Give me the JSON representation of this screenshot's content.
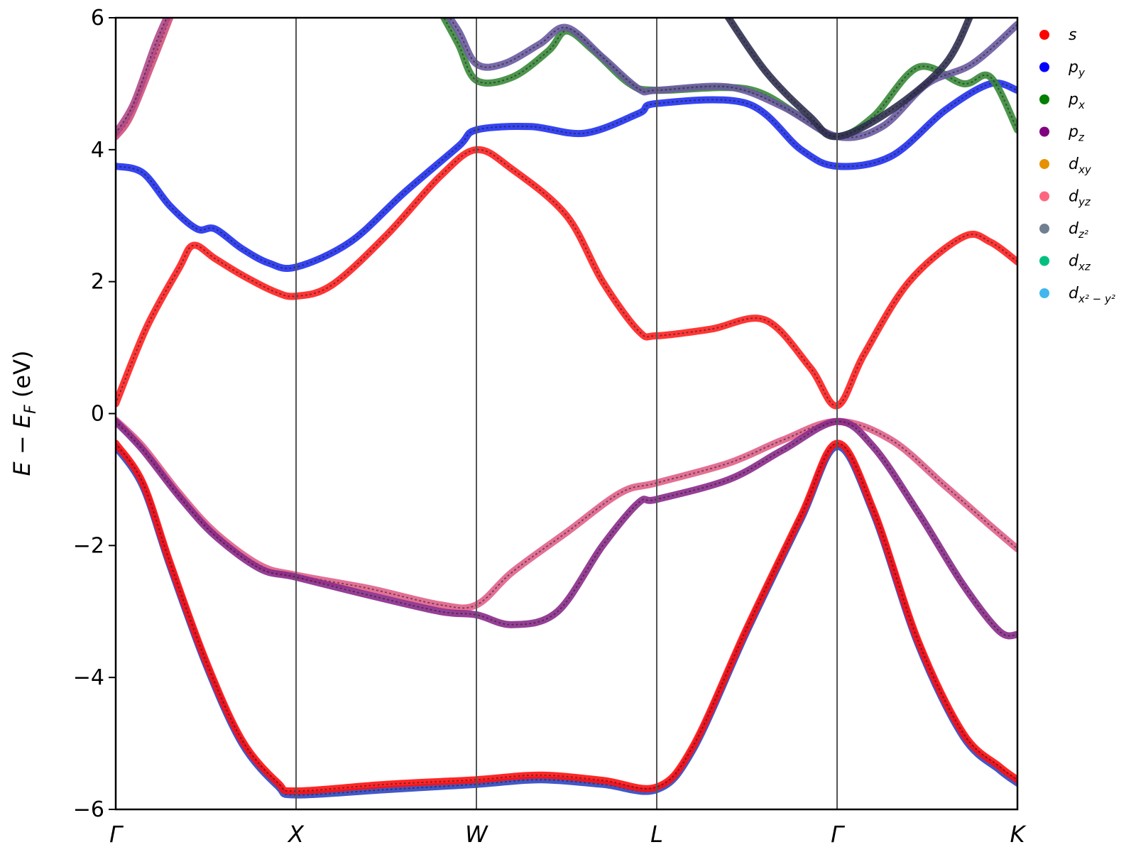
{
  "chart_data": {
    "type": "line",
    "ylabel": "E − E_F (eV)",
    "ylabel_parts": [
      "E",
      " − ",
      "E",
      "F",
      " (eV)"
    ],
    "ylim": [
      -6,
      6
    ],
    "y_ticks": [
      "−6",
      "−4",
      "−2",
      "0",
      "2",
      "4",
      "6"
    ],
    "y_tick_values": [
      -6,
      -4,
      -2,
      0,
      2,
      4,
      6
    ],
    "high_symmetry_points": [
      "Γ",
      "X",
      "W",
      "L",
      "Γ",
      "K"
    ],
    "high_symmetry_positions": [
      0,
      1,
      2,
      3,
      4,
      5
    ],
    "grid": false,
    "legend_position": "outside-right",
    "legend": [
      {
        "main": "s",
        "sub": "",
        "color": "#ff0000"
      },
      {
        "main": "p",
        "sub": "y",
        "color": "#0000ff"
      },
      {
        "main": "p",
        "sub": "x",
        "color": "#007f00"
      },
      {
        "main": "p",
        "sub": "z",
        "color": "#800080"
      },
      {
        "main": "d",
        "sub": "xy",
        "color": "#e69100"
      },
      {
        "main": "d",
        "sub": "yz",
        "color": "#ff6680"
      },
      {
        "main": "d",
        "sub": "z²",
        "color": "#708090"
      },
      {
        "main": "d",
        "sub": "xz",
        "color": "#00c080"
      },
      {
        "main": "d",
        "sub": "x² − y²",
        "color": "#40b8ee"
      }
    ],
    "series": [
      {
        "color": "#ff2020",
        "points": [
          [
            0,
            0.15
          ],
          [
            0.17,
            1.3
          ],
          [
            0.35,
            2.2
          ],
          [
            0.43,
            2.55
          ],
          [
            0.55,
            2.35
          ],
          [
            0.7,
            2.1
          ],
          [
            0.88,
            1.85
          ],
          [
            1.0,
            1.78
          ],
          [
            1.2,
            1.95
          ],
          [
            1.5,
            2.7
          ],
          [
            1.8,
            3.6
          ],
          [
            2.0,
            4.0
          ],
          [
            2.2,
            3.7
          ],
          [
            2.5,
            3.0
          ],
          [
            2.7,
            2.0
          ],
          [
            2.9,
            1.25
          ],
          [
            3.0,
            1.18
          ],
          [
            3.3,
            1.28
          ],
          [
            3.6,
            1.42
          ],
          [
            3.85,
            0.7
          ],
          [
            4.0,
            0.12
          ],
          [
            4.15,
            0.9
          ],
          [
            4.4,
            2.0
          ],
          [
            4.7,
            2.68
          ],
          [
            4.85,
            2.6
          ],
          [
            5.0,
            2.3
          ]
        ]
      },
      {
        "color": "#2030ee",
        "points": [
          [
            0,
            3.75
          ],
          [
            0.15,
            3.65
          ],
          [
            0.3,
            3.15
          ],
          [
            0.45,
            2.8
          ],
          [
            0.55,
            2.8
          ],
          [
            0.7,
            2.5
          ],
          [
            0.85,
            2.28
          ],
          [
            1.0,
            2.22
          ],
          [
            1.3,
            2.6
          ],
          [
            1.6,
            3.35
          ],
          [
            1.9,
            4.05
          ],
          [
            2.0,
            4.3
          ],
          [
            2.3,
            4.35
          ],
          [
            2.6,
            4.25
          ],
          [
            2.9,
            4.55
          ],
          [
            3.0,
            4.7
          ],
          [
            3.5,
            4.7
          ],
          [
            3.8,
            4.0
          ],
          [
            4.0,
            3.75
          ],
          [
            4.3,
            3.9
          ],
          [
            4.6,
            4.6
          ],
          [
            4.85,
            5.0
          ],
          [
            5.0,
            4.9
          ]
        ]
      },
      {
        "color": "#d0507a",
        "points": [
          [
            0,
            4.2
          ],
          [
            0.08,
            4.5
          ],
          [
            0.2,
            5.3
          ],
          [
            0.3,
            6.0
          ]
        ]
      },
      {
        "color": "#b04a8a",
        "points": [
          [
            0,
            4.25
          ],
          [
            0.1,
            4.7
          ],
          [
            0.22,
            5.6
          ],
          [
            0.3,
            6.1
          ]
        ]
      },
      {
        "color": "#3a8a3a",
        "points": [
          [
            1.8,
            6.1
          ],
          [
            1.9,
            5.6
          ],
          [
            2.0,
            5.05
          ],
          [
            2.2,
            5.1
          ],
          [
            2.4,
            5.5
          ],
          [
            2.5,
            5.8
          ],
          [
            2.65,
            5.5
          ],
          [
            2.85,
            5.0
          ],
          [
            3.0,
            4.9
          ],
          [
            3.5,
            4.92
          ],
          [
            3.8,
            4.5
          ],
          [
            4.0,
            4.2
          ],
          [
            4.2,
            4.5
          ],
          [
            4.45,
            5.25
          ],
          [
            4.7,
            5.0
          ],
          [
            4.85,
            5.1
          ],
          [
            5.0,
            4.3
          ]
        ]
      },
      {
        "color": "#6a5aa0",
        "points": [
          [
            1.8,
            6.2
          ],
          [
            1.9,
            5.8
          ],
          [
            2.0,
            5.3
          ],
          [
            2.15,
            5.3
          ],
          [
            2.35,
            5.6
          ],
          [
            2.5,
            5.85
          ],
          [
            2.7,
            5.4
          ],
          [
            2.9,
            4.92
          ],
          [
            3.0,
            4.9
          ],
          [
            3.4,
            4.95
          ],
          [
            3.7,
            4.65
          ],
          [
            4.0,
            4.2
          ],
          [
            4.25,
            4.35
          ],
          [
            4.5,
            5.0
          ],
          [
            4.75,
            5.3
          ],
          [
            5.0,
            5.9
          ]
        ]
      },
      {
        "color": "#303050",
        "points": [
          [
            3.35,
            6.2
          ],
          [
            3.6,
            5.2
          ],
          [
            3.85,
            4.5
          ],
          [
            4.0,
            4.2
          ],
          [
            4.3,
            4.6
          ],
          [
            4.6,
            5.3
          ],
          [
            4.75,
            6.1
          ]
        ]
      },
      {
        "color": "#e0608a",
        "points": [
          [
            0,
            -0.1
          ],
          [
            0.15,
            -0.5
          ],
          [
            0.35,
            -1.2
          ],
          [
            0.55,
            -1.8
          ],
          [
            0.8,
            -2.3
          ],
          [
            1.0,
            -2.45
          ],
          [
            1.4,
            -2.65
          ],
          [
            1.8,
            -2.9
          ],
          [
            2.0,
            -2.9
          ],
          [
            2.2,
            -2.4
          ],
          [
            2.5,
            -1.8
          ],
          [
            2.8,
            -1.2
          ],
          [
            3.0,
            -1.05
          ],
          [
            3.4,
            -0.75
          ],
          [
            3.7,
            -0.4
          ],
          [
            4.0,
            -0.12
          ],
          [
            4.3,
            -0.4
          ],
          [
            4.6,
            -1.1
          ],
          [
            4.85,
            -1.7
          ],
          [
            5.0,
            -2.05
          ]
        ]
      },
      {
        "color": "#8a2a8a",
        "points": [
          [
            0,
            -0.12
          ],
          [
            0.15,
            -0.55
          ],
          [
            0.35,
            -1.25
          ],
          [
            0.55,
            -1.85
          ],
          [
            0.8,
            -2.35
          ],
          [
            1.0,
            -2.48
          ],
          [
            1.4,
            -2.75
          ],
          [
            1.8,
            -3.0
          ],
          [
            2.0,
            -3.05
          ],
          [
            2.2,
            -3.2
          ],
          [
            2.45,
            -3.0
          ],
          [
            2.7,
            -2.0
          ],
          [
            2.9,
            -1.35
          ],
          [
            3.0,
            -1.3
          ],
          [
            3.4,
            -1.0
          ],
          [
            3.7,
            -0.55
          ],
          [
            4.0,
            -0.12
          ],
          [
            4.2,
            -0.5
          ],
          [
            4.45,
            -1.5
          ],
          [
            4.7,
            -2.6
          ],
          [
            4.9,
            -3.3
          ],
          [
            5.0,
            -3.35
          ]
        ]
      },
      {
        "color": "#2f45c0",
        "points": [
          [
            0,
            -0.5
          ],
          [
            0.15,
            -1.1
          ],
          [
            0.3,
            -2.3
          ],
          [
            0.5,
            -3.8
          ],
          [
            0.7,
            -5.0
          ],
          [
            0.9,
            -5.65
          ],
          [
            1.0,
            -5.78
          ],
          [
            1.5,
            -5.7
          ],
          [
            2.0,
            -5.62
          ],
          [
            2.35,
            -5.55
          ],
          [
            2.7,
            -5.62
          ],
          [
            3.0,
            -5.7
          ],
          [
            3.2,
            -5.1
          ],
          [
            3.5,
            -3.3
          ],
          [
            3.8,
            -1.6
          ],
          [
            4.0,
            -0.5
          ],
          [
            4.2,
            -1.5
          ],
          [
            4.45,
            -3.5
          ],
          [
            4.7,
            -4.9
          ],
          [
            4.9,
            -5.4
          ],
          [
            5.0,
            -5.6
          ]
        ]
      },
      {
        "color": "#ff1010",
        "points": [
          [
            0,
            -0.45
          ],
          [
            0.15,
            -1.05
          ],
          [
            0.3,
            -2.25
          ],
          [
            0.5,
            -3.75
          ],
          [
            0.7,
            -4.95
          ],
          [
            0.9,
            -5.6
          ],
          [
            1.0,
            -5.72
          ],
          [
            1.5,
            -5.62
          ],
          [
            2.0,
            -5.55
          ],
          [
            2.35,
            -5.48
          ],
          [
            2.7,
            -5.56
          ],
          [
            3.0,
            -5.66
          ],
          [
            3.2,
            -5.05
          ],
          [
            3.5,
            -3.25
          ],
          [
            3.8,
            -1.55
          ],
          [
            4.0,
            -0.45
          ],
          [
            4.2,
            -1.45
          ],
          [
            4.45,
            -3.45
          ],
          [
            4.7,
            -4.85
          ],
          [
            4.9,
            -5.35
          ],
          [
            5.0,
            -5.55
          ]
        ]
      }
    ]
  }
}
